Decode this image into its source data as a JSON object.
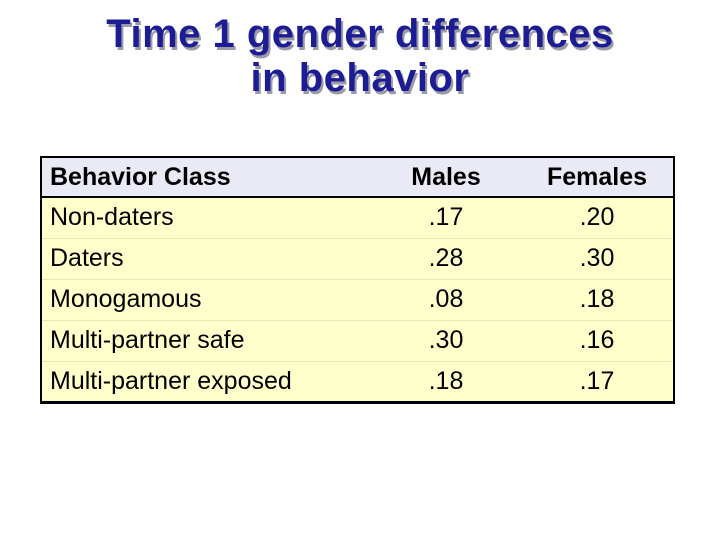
{
  "slide": {
    "title": {
      "line1": "Time 1 gender differences",
      "line2": "in behavior"
    }
  },
  "table": {
    "columns": [
      "Behavior Class",
      "Males",
      "Females"
    ],
    "rows": [
      [
        "Non-daters",
        ".17",
        ".20"
      ],
      [
        "Daters",
        ".28",
        ".30"
      ],
      [
        "Monogamous",
        ".08",
        ".18"
      ],
      [
        "Multi-partner safe",
        ".30",
        ".16"
      ],
      [
        "Multi-partner exposed",
        ".18",
        ".17"
      ]
    ]
  },
  "colors": {
    "title-color": "#1c1c94",
    "title-shadow": "#9a9aa8",
    "header-bg": "#eaeaf6",
    "row-bg": "#ffffcc",
    "border-color": "#000000"
  }
}
